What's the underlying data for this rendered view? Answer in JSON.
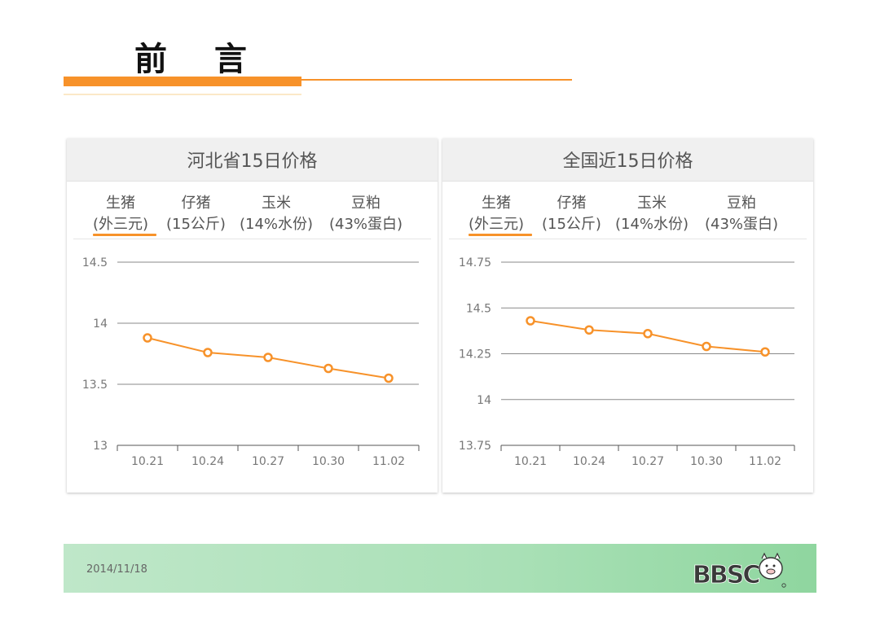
{
  "page": {
    "title": "前 言",
    "footer_date": "2014/11/18",
    "logo_text": "BBSC"
  },
  "panels": [
    {
      "heading": "河北省15日价格",
      "tabs": [
        {
          "line1": "生猪",
          "line2": "(外三元)"
        },
        {
          "line1": "仔猪",
          "line2": "(15公斤)"
        },
        {
          "line1": "玉米",
          "line2": "(14%水份)"
        },
        {
          "line1": "豆粕",
          "line2": "(43%蛋白)"
        }
      ],
      "active_tab": 0
    },
    {
      "heading": "全国近15日价格",
      "tabs": [
        {
          "line1": "生猪",
          "line2": "(外三元)"
        },
        {
          "line1": "仔猪",
          "line2": "(15公斤)"
        },
        {
          "line1": "玉米",
          "line2": "(14%水份)"
        },
        {
          "line1": "豆粕",
          "line2": "(43%蛋白)"
        }
      ],
      "active_tab": 0
    }
  ],
  "colors": {
    "accent": "#f7922a",
    "series": "#f7922a",
    "grid": "#8a8a8a"
  },
  "chart_data": [
    {
      "type": "line",
      "categories": [
        "10.21",
        "10.24",
        "10.27",
        "10.30",
        "11.02"
      ],
      "series": [
        {
          "values": [
            13.88,
            13.76,
            13.72,
            13.63,
            13.55
          ]
        }
      ],
      "ylim": [
        13,
        14.5
      ],
      "yticks": [
        "13",
        "13.5",
        "14",
        "14.5"
      ],
      "grid": true
    },
    {
      "type": "line",
      "categories": [
        "10.21",
        "10.24",
        "10.27",
        "10.30",
        "11.02"
      ],
      "series": [
        {
          "values": [
            14.43,
            14.38,
            14.36,
            14.29,
            14.26
          ]
        }
      ],
      "ylim": [
        13.75,
        14.75
      ],
      "yticks": [
        "13.75",
        "14",
        "14.25",
        "14.5",
        "14.75"
      ],
      "grid": true
    }
  ]
}
